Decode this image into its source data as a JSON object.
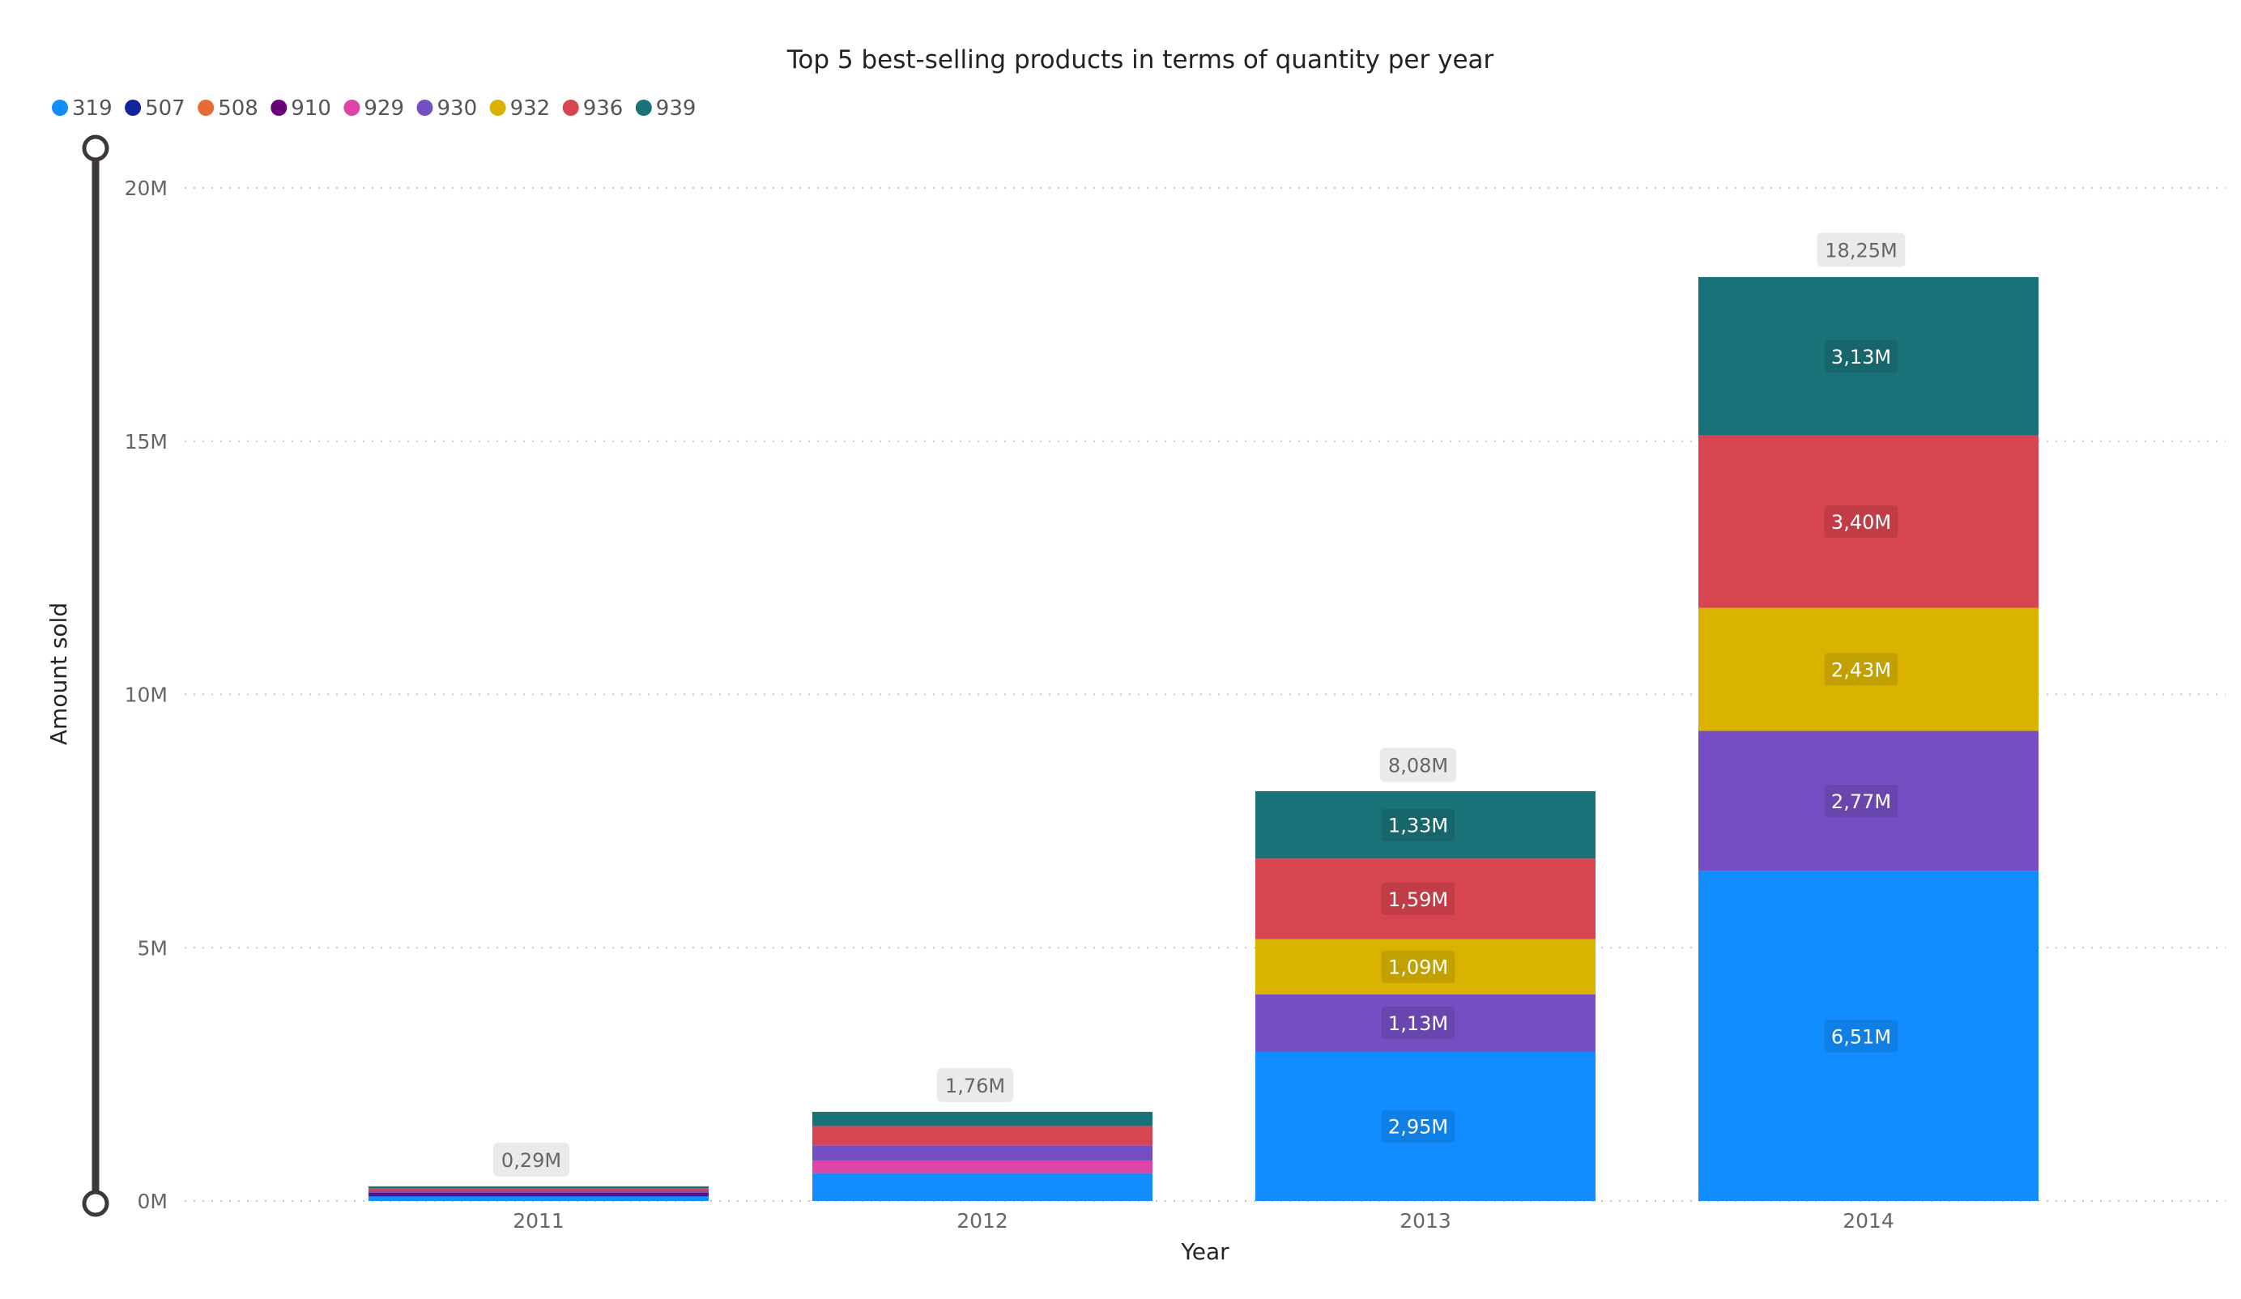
{
  "chart_data": {
    "type": "bar",
    "stacked": true,
    "title": "Top 5 best-selling products in terms of quantity per year",
    "xlabel": "Year",
    "ylabel": "Amount sold",
    "ylim": [
      0,
      20000000
    ],
    "yticks": [
      {
        "value": 0,
        "label": "0M"
      },
      {
        "value": 5000000,
        "label": "5M"
      },
      {
        "value": 10000000,
        "label": "10M"
      },
      {
        "value": 15000000,
        "label": "15M"
      },
      {
        "value": 20000000,
        "label": "20M"
      }
    ],
    "grid": true,
    "legend_position": "top-left",
    "categories": [
      "2011",
      "2012",
      "2013",
      "2014"
    ],
    "series": [
      {
        "name": "319",
        "color": "#118DFF",
        "values": [
          90000,
          550000,
          2950000,
          6510000
        ],
        "labels": [
          "",
          "",
          "2,95M",
          "6,51M"
        ]
      },
      {
        "name": "507",
        "color": "#12239E",
        "values": [
          35000,
          0,
          0,
          0
        ],
        "labels": [
          "",
          "",
          "",
          ""
        ]
      },
      {
        "name": "508",
        "color": "#E66C37",
        "values": [
          0,
          0,
          0,
          0
        ],
        "labels": [
          "",
          "",
          "",
          ""
        ]
      },
      {
        "name": "910",
        "color": "#6B007B",
        "values": [
          40000,
          0,
          0,
          0
        ],
        "labels": [
          "",
          "",
          "",
          ""
        ]
      },
      {
        "name": "929",
        "color": "#E044A7",
        "values": [
          0,
          250000,
          0,
          0
        ],
        "labels": [
          "",
          "",
          "",
          ""
        ]
      },
      {
        "name": "930",
        "color": "#744EC2",
        "values": [
          35000,
          300000,
          1130000,
          2770000
        ],
        "labels": [
          "",
          "",
          "1,13M",
          "2,77M"
        ]
      },
      {
        "name": "932",
        "color": "#D9B300",
        "values": [
          0,
          0,
          1090000,
          2430000
        ],
        "labels": [
          "",
          "",
          "1,09M",
          "2,43M"
        ]
      },
      {
        "name": "936",
        "color": "#D64550",
        "values": [
          45000,
          380000,
          1590000,
          3400000
        ],
        "labels": [
          "",
          "",
          "1,59M",
          "3,40M"
        ]
      },
      {
        "name": "939",
        "color": "#197278",
        "values": [
          45000,
          280000,
          1330000,
          3130000
        ],
        "labels": [
          "",
          "",
          "1,33M",
          "3,13M"
        ]
      }
    ],
    "totals": [
      {
        "value": 290000,
        "label": "0,29M"
      },
      {
        "value": 1760000,
        "label": "1,76M"
      },
      {
        "value": 8080000,
        "label": "8,08M"
      },
      {
        "value": 18250000,
        "label": "18,25M"
      }
    ]
  }
}
